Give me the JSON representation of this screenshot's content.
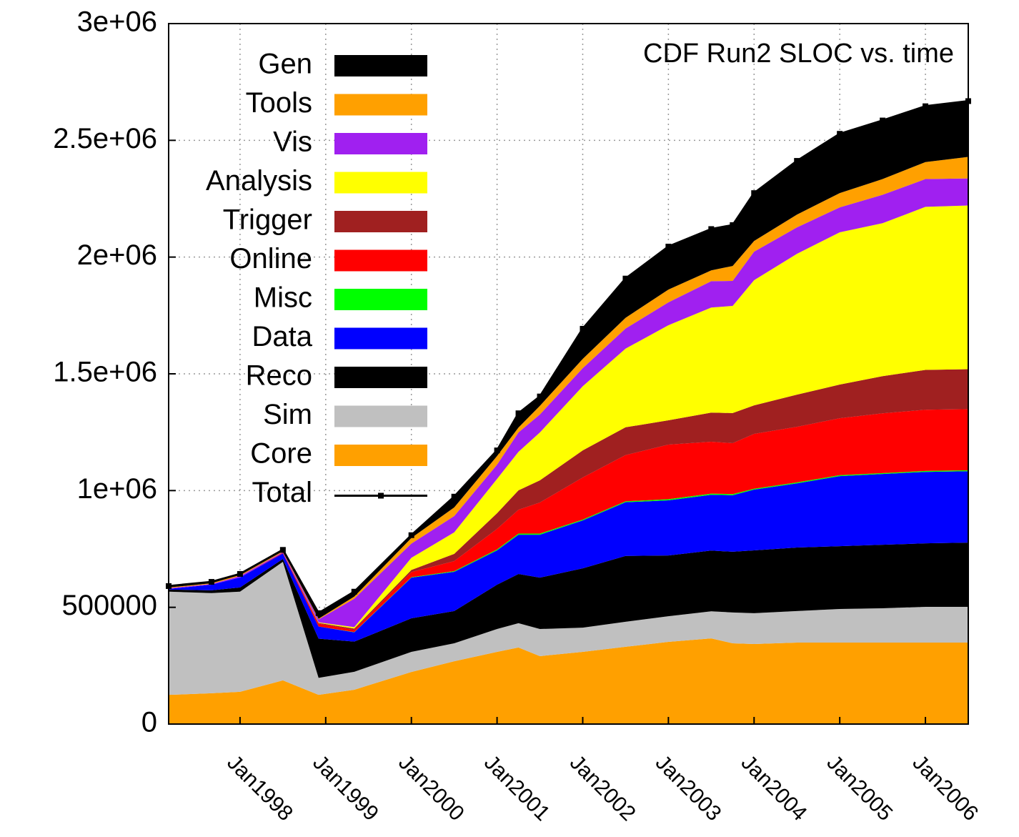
{
  "chart_data": {
    "type": "stacked_area",
    "title": "CDF Run2 SLOC vs. time",
    "x": [
      "1997-03",
      "1997-09",
      "1998-01",
      "1998-07",
      "1998-12",
      "1999-05",
      "2000-01",
      "2000-07",
      "2001-01",
      "2001-04",
      "2001-07",
      "2002-01",
      "2002-07",
      "2003-01",
      "2003-07",
      "2003-10",
      "2004-01",
      "2004-07",
      "2005-01",
      "2005-07",
      "2006-01",
      "2006-07"
    ],
    "xlim": [
      "1997-03",
      "2006-07"
    ],
    "xticks": [
      {
        "value": "1998-01",
        "label": "Jan1998"
      },
      {
        "value": "1999-01",
        "label": "Jan1999"
      },
      {
        "value": "2000-01",
        "label": "Jan2000"
      },
      {
        "value": "2001-01",
        "label": "Jan2001"
      },
      {
        "value": "2002-01",
        "label": "Jan2002"
      },
      {
        "value": "2003-01",
        "label": "Jan2003"
      },
      {
        "value": "2004-01",
        "label": "Jan2004"
      },
      {
        "value": "2005-01",
        "label": "Jan2005"
      },
      {
        "value": "2006-01",
        "label": "Jan2006"
      }
    ],
    "ylim": [
      0,
      3000000
    ],
    "yticks": [
      0,
      500000,
      {
        "value": 1000000,
        "label": "1e+06"
      },
      {
        "value": 1500000,
        "label": "1.5e+06"
      },
      {
        "value": 2000000,
        "label": "2e+06"
      },
      {
        "value": 2500000,
        "label": "2.5e+06"
      },
      {
        "value": 3000000,
        "label": "3e+06"
      }
    ],
    "grid": true,
    "legend": "top-left",
    "series": [
      {
        "name": "Core",
        "color": "#ffa000",
        "values": [
          125000,
          132000,
          138000,
          187000,
          125000,
          147000,
          223000,
          269000,
          309000,
          328000,
          291000,
          309000,
          331000,
          352000,
          367000,
          346000,
          343000,
          349000,
          349000,
          349000,
          349000,
          349000
        ]
      },
      {
        "name": "Sim",
        "color": "#c0c0c0",
        "values": [
          442000,
          429000,
          429000,
          508000,
          73000,
          77000,
          86000,
          77000,
          98000,
          104000,
          116000,
          104000,
          107000,
          110000,
          116000,
          132000,
          132000,
          135000,
          144000,
          147000,
          153000,
          153000
        ]
      },
      {
        "name": "Reco",
        "color": "#000000",
        "values": [
          9000,
          12000,
          18000,
          12000,
          168000,
          129000,
          144000,
          138000,
          190000,
          211000,
          220000,
          254000,
          282000,
          260000,
          260000,
          260000,
          269000,
          272000,
          269000,
          272000,
          272000,
          275000
        ]
      },
      {
        "name": "Data",
        "color": "#0000ff",
        "values": [
          3000,
          24000,
          43000,
          24000,
          52000,
          40000,
          174000,
          168000,
          147000,
          168000,
          184000,
          205000,
          230000,
          236000,
          239000,
          242000,
          260000,
          275000,
          300000,
          303000,
          306000,
          306000
        ]
      },
      {
        "name": "Misc",
        "color": "#00ff00",
        "values": [
          0,
          0,
          0,
          0,
          0,
          1000,
          2000,
          3000,
          4000,
          5000,
          5000,
          4000,
          4000,
          5000,
          5000,
          5000,
          4000,
          4000,
          4000,
          4000,
          4000,
          4000
        ]
      },
      {
        "name": "Online",
        "color": "#ff0000",
        "values": [
          0,
          0,
          0,
          3000,
          12000,
          9000,
          22000,
          43000,
          88000,
          102000,
          133000,
          180000,
          198000,
          234000,
          222000,
          218000,
          235000,
          238000,
          244000,
          256000,
          262000,
          262000
        ]
      },
      {
        "name": "Trigger",
        "color": "#a02020",
        "values": [
          0,
          0,
          0,
          0,
          3000,
          6000,
          9000,
          31000,
          67000,
          83000,
          95000,
          116000,
          119000,
          104000,
          125000,
          129000,
          122000,
          138000,
          144000,
          159000,
          171000,
          171000
        ]
      },
      {
        "name": "Analysis",
        "color": "#ffff00",
        "values": [
          0,
          0,
          0,
          0,
          3000,
          6000,
          52000,
          92000,
          147000,
          165000,
          205000,
          275000,
          337000,
          407000,
          450000,
          459000,
          536000,
          603000,
          652000,
          655000,
          698000,
          701000
        ]
      },
      {
        "name": "Vis",
        "color": "#a020f0",
        "values": [
          3000,
          3000,
          6000,
          3000,
          12000,
          122000,
          61000,
          70000,
          61000,
          83000,
          77000,
          77000,
          86000,
          98000,
          113000,
          107000,
          122000,
          113000,
          107000,
          122000,
          119000,
          116000
        ]
      },
      {
        "name": "Tools",
        "color": "#ffa000",
        "values": [
          3000,
          3000,
          6000,
          3000,
          3000,
          9000,
          24000,
          37000,
          37000,
          21000,
          37000,
          40000,
          46000,
          55000,
          46000,
          64000,
          46000,
          55000,
          61000,
          67000,
          73000,
          92000
        ]
      },
      {
        "name": "Gen",
        "color": "#000000",
        "values": [
          6000,
          6000,
          3000,
          6000,
          24000,
          21000,
          12000,
          46000,
          24000,
          61000,
          40000,
          129000,
          168000,
          184000,
          177000,
          175000,
          205000,
          230000,
          254000,
          251000,
          239000,
          239000
        ]
      }
    ],
    "total": {
      "name": "Total",
      "color": "#000000",
      "values": [
        591000,
        609000,
        643000,
        746000,
        475000,
        567000,
        809000,
        974000,
        1172000,
        1331000,
        1403000,
        1693000,
        1908000,
        2045000,
        2120000,
        2137000,
        2274000,
        2412000,
        2528000,
        2585000,
        2646000,
        2668000
      ]
    }
  }
}
